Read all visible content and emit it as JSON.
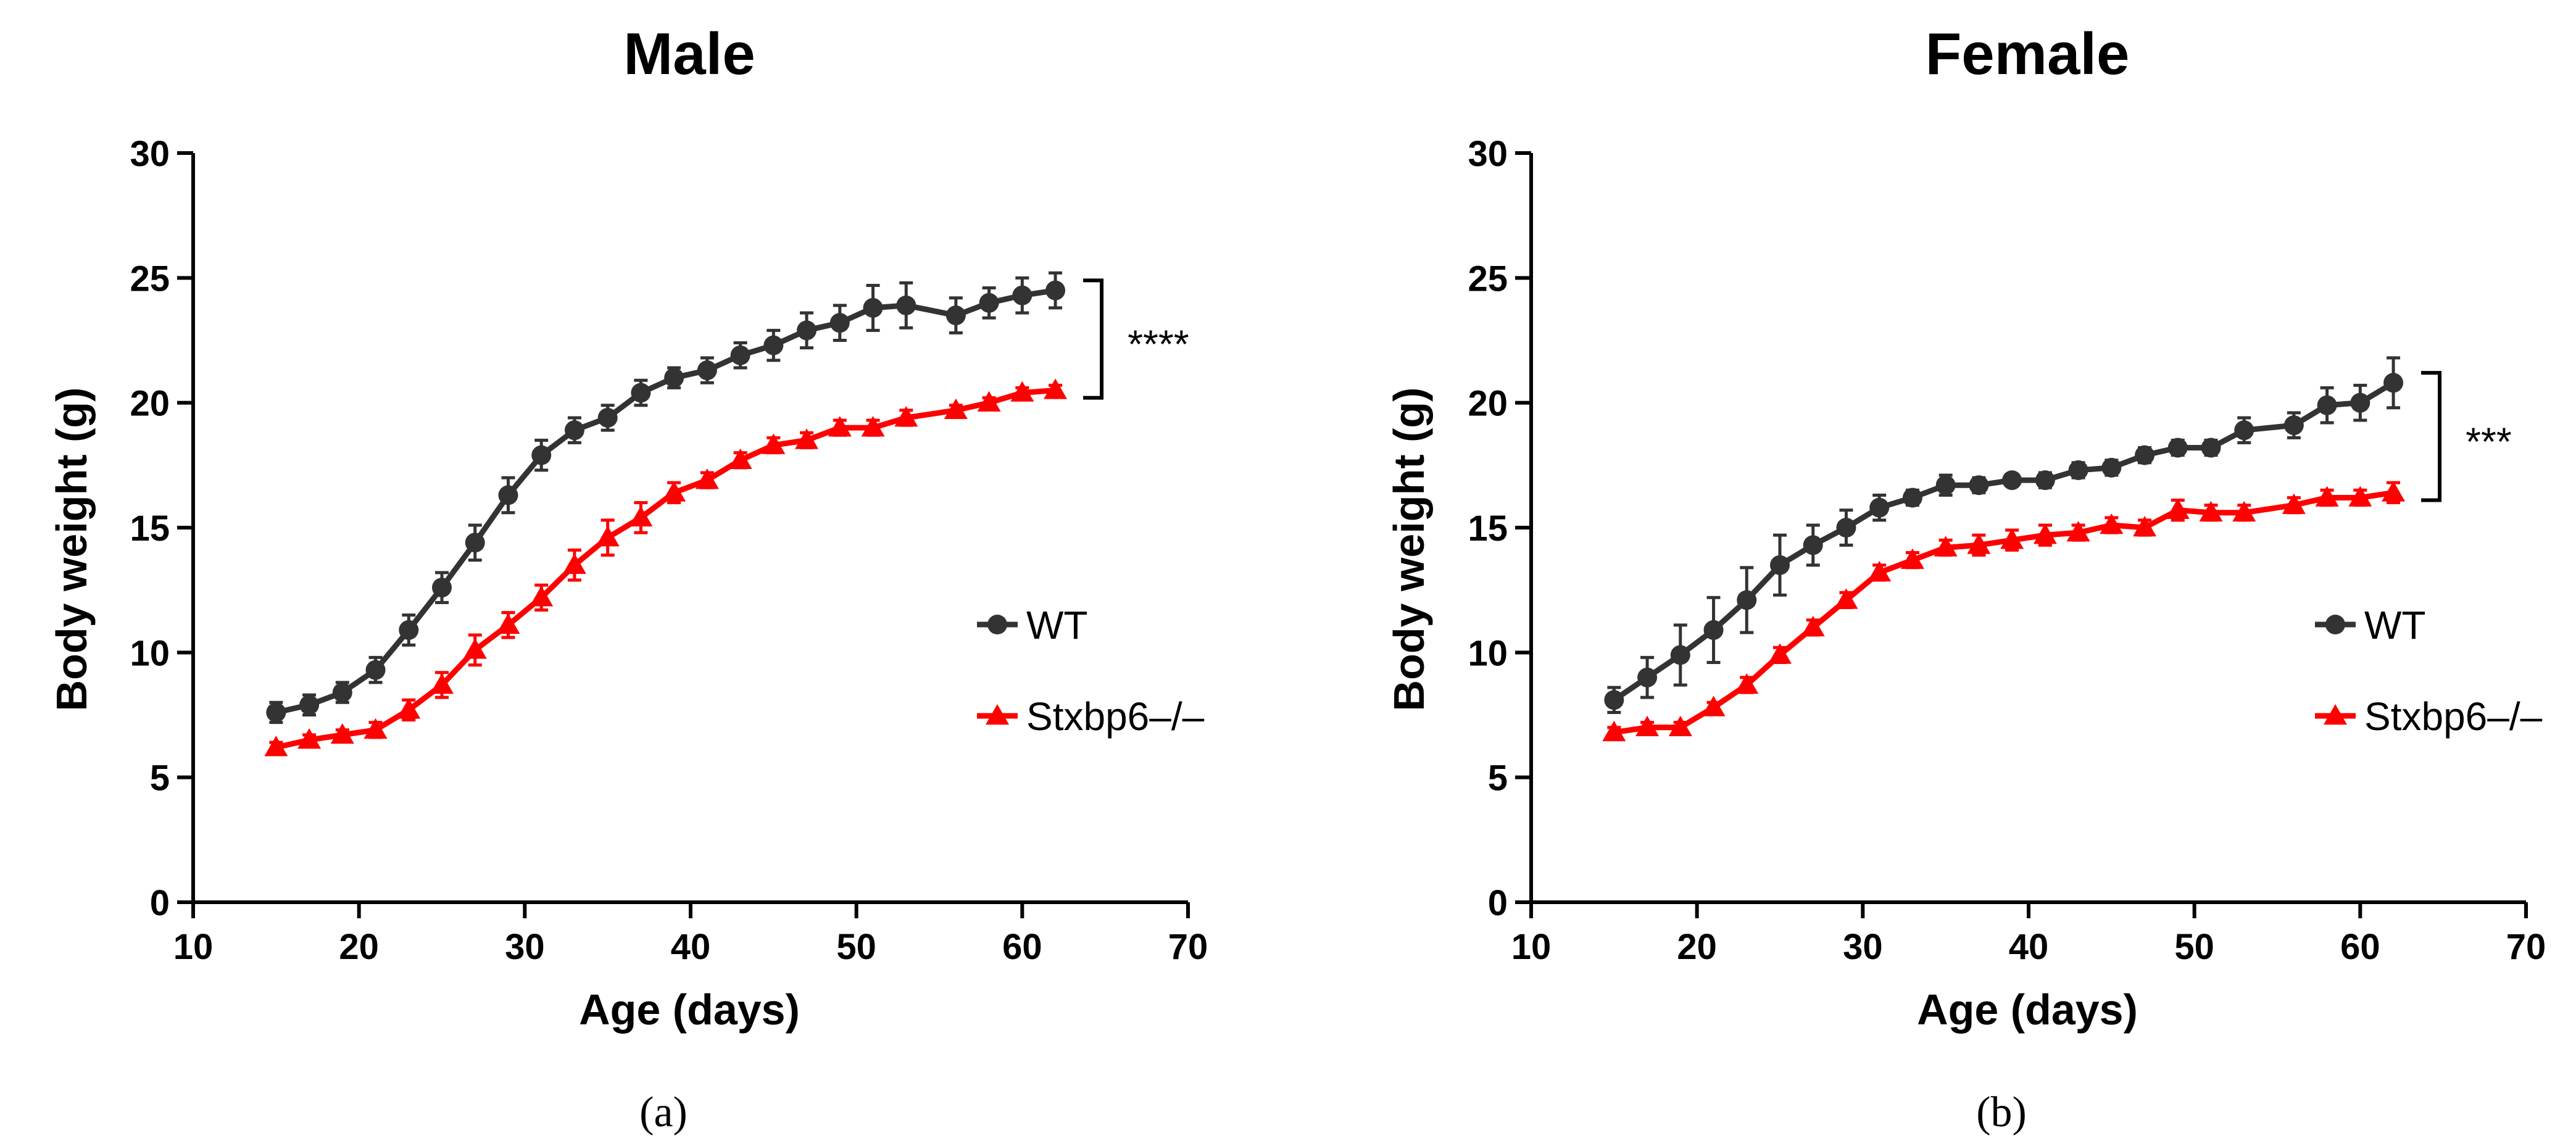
{
  "chart_data": [
    {
      "type": "line",
      "title": "Male",
      "panel_label": "(a)",
      "xlabel": "Age (days)",
      "ylabel": "Body weight (g)",
      "xlim": [
        10,
        70
      ],
      "ylim": [
        0,
        30
      ],
      "xticks": [
        10,
        20,
        30,
        40,
        50,
        60,
        70
      ],
      "yticks": [
        0,
        5,
        10,
        15,
        20,
        25,
        30
      ],
      "legend_position": "center-right",
      "significance": "****",
      "series": [
        {
          "name": "WT",
          "color": "#333333",
          "marker": "circle",
          "x": [
            15,
            17,
            19,
            21,
            23,
            25,
            27,
            29,
            31,
            33,
            35,
            37,
            39,
            41,
            43,
            45,
            47,
            49,
            51,
            53,
            56,
            58,
            60,
            62
          ],
          "values": [
            7.6,
            7.9,
            8.4,
            9.3,
            10.9,
            12.6,
            14.4,
            16.3,
            17.9,
            18.9,
            19.4,
            20.4,
            21.0,
            21.3,
            21.9,
            22.3,
            22.9,
            23.2,
            23.8,
            23.9,
            23.5,
            24.0,
            24.3,
            24.5
          ],
          "errors": [
            0.4,
            0.4,
            0.4,
            0.5,
            0.6,
            0.6,
            0.7,
            0.7,
            0.6,
            0.5,
            0.5,
            0.5,
            0.4,
            0.5,
            0.5,
            0.6,
            0.7,
            0.7,
            0.9,
            0.9,
            0.7,
            0.6,
            0.7,
            0.7
          ]
        },
        {
          "name": "Stxbp6–/–",
          "color": "#ff0000",
          "marker": "triangle",
          "x": [
            15,
            17,
            19,
            21,
            23,
            25,
            27,
            29,
            31,
            33,
            35,
            37,
            39,
            41,
            43,
            45,
            47,
            49,
            51,
            53,
            56,
            58,
            60,
            62
          ],
          "values": [
            6.2,
            6.5,
            6.7,
            6.9,
            7.7,
            8.7,
            10.1,
            11.1,
            12.2,
            13.5,
            14.6,
            15.4,
            16.4,
            16.9,
            17.7,
            18.3,
            18.5,
            19.0,
            19.0,
            19.4,
            19.7,
            20.0,
            20.4,
            20.5
          ],
          "errors": [
            0.2,
            0.2,
            0.2,
            0.3,
            0.4,
            0.5,
            0.6,
            0.5,
            0.5,
            0.6,
            0.7,
            0.6,
            0.4,
            0.3,
            0.3,
            0.3,
            0.3,
            0.3,
            0.3,
            0.3,
            0.2,
            0.2,
            0.2,
            0.2
          ]
        }
      ]
    },
    {
      "type": "line",
      "title": "Female",
      "panel_label": "(b)",
      "xlabel": "Age (days)",
      "ylabel": "Body weight (g)",
      "xlim": [
        10,
        70
      ],
      "ylim": [
        0,
        30
      ],
      "xticks": [
        10,
        20,
        30,
        40,
        50,
        60,
        70
      ],
      "yticks": [
        0,
        5,
        10,
        15,
        20,
        25,
        30
      ],
      "legend_position": "center-right",
      "significance": "***",
      "series": [
        {
          "name": "WT",
          "color": "#333333",
          "marker": "circle",
          "x": [
            15,
            17,
            19,
            21,
            23,
            25,
            27,
            29,
            31,
            33,
            35,
            37,
            39,
            41,
            43,
            45,
            47,
            49,
            51,
            53,
            56,
            58,
            60,
            62
          ],
          "values": [
            8.1,
            9.0,
            9.9,
            10.9,
            12.1,
            13.5,
            14.3,
            15.0,
            15.8,
            16.2,
            16.7,
            16.7,
            16.9,
            16.9,
            17.3,
            17.4,
            17.9,
            18.2,
            18.2,
            18.9,
            19.1,
            19.9,
            20.0,
            20.8
          ],
          "errors": [
            0.5,
            0.8,
            1.2,
            1.3,
            1.3,
            1.2,
            0.8,
            0.7,
            0.5,
            0.3,
            0.4,
            0.3,
            0.2,
            0.3,
            0.3,
            0.3,
            0.3,
            0.3,
            0.3,
            0.5,
            0.5,
            0.7,
            0.7,
            1.0
          ]
        },
        {
          "name": "Stxbp6–/–",
          "color": "#ff0000",
          "marker": "triangle",
          "x": [
            15,
            17,
            19,
            21,
            23,
            25,
            27,
            29,
            31,
            33,
            35,
            37,
            39,
            41,
            43,
            45,
            47,
            49,
            51,
            53,
            56,
            58,
            60,
            62
          ],
          "values": [
            6.8,
            7.0,
            7.0,
            7.8,
            8.7,
            9.9,
            11.0,
            12.1,
            13.2,
            13.7,
            14.2,
            14.3,
            14.5,
            14.7,
            14.8,
            15.1,
            15.0,
            15.7,
            15.6,
            15.6,
            15.9,
            16.2,
            16.2,
            16.4
          ],
          "errors": [
            0.2,
            0.2,
            0.2,
            0.2,
            0.3,
            0.3,
            0.3,
            0.3,
            0.3,
            0.3,
            0.3,
            0.4,
            0.4,
            0.4,
            0.3,
            0.3,
            0.3,
            0.4,
            0.3,
            0.3,
            0.3,
            0.3,
            0.3,
            0.4
          ]
        }
      ]
    }
  ]
}
